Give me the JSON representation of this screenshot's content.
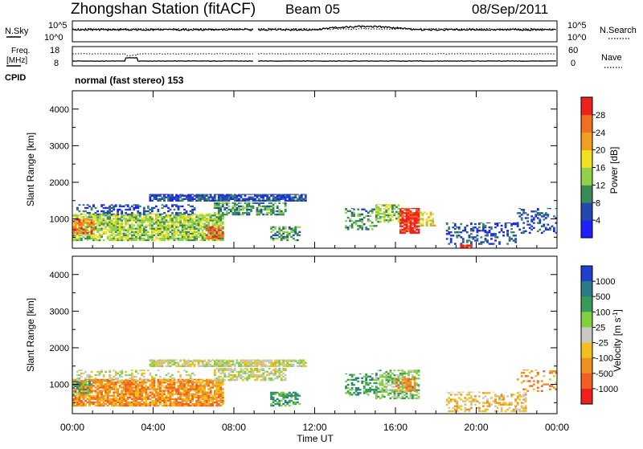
{
  "header": {
    "title": "Zhongshan Station (fitACF)",
    "beam": "Beam 05",
    "date": "08/Sep/2011"
  },
  "top_panels": {
    "nsky_label": "N.Sky",
    "nsky_top_tick": "10^5",
    "nsky_bottom_tick": "10^0",
    "nsearch_label": "N.Search",
    "nsearch_top_tick": "10^5",
    "nsearch_bottom_tick": "10^0",
    "freq_label_1": "Freq.",
    "freq_label_2": "[MHz]",
    "freq_top_tick": "18",
    "freq_bottom_tick": "8",
    "nave_label": "Nave",
    "nave_top_tick": "60",
    "nave_bottom_tick": "0",
    "cpid_label": "CPID",
    "cpid_text": "normal (fast stereo) 153"
  },
  "x_axis": {
    "label": "Time UT",
    "ticks": [
      "00:00",
      "04:00",
      "08:00",
      "12:00",
      "16:00",
      "20:00",
      "00:00"
    ]
  },
  "chart_data": [
    {
      "type": "heatmap",
      "panel": "power",
      "ylabel": "Slant Range [km]",
      "yticks": [
        "1000",
        "2000",
        "3000",
        "4000"
      ],
      "ylim": [
        200,
        4500
      ],
      "xlim": [
        0,
        24
      ],
      "x_unit": "hours UT",
      "colorbar": {
        "label": "Power [dB]",
        "ticks": [
          "4",
          "8",
          "12",
          "16",
          "20",
          "24",
          "28"
        ],
        "range": [
          0,
          32
        ],
        "colors": [
          "#1f1fff",
          "#2448b0",
          "#3a8a5a",
          "#8fd24a",
          "#f0e020",
          "#f0a020",
          "#f07020",
          "#f02020"
        ]
      },
      "regions": [
        {
          "t0": 0.0,
          "t1": 7.4,
          "r0": 400,
          "r1": 1150,
          "level": 3,
          "density": 0.75
        },
        {
          "t0": 0.0,
          "t1": 1.0,
          "r0": 600,
          "r1": 1000,
          "level": 6,
          "density": 0.6
        },
        {
          "t0": 6.6,
          "t1": 7.4,
          "r0": 450,
          "r1": 800,
          "level": 6,
          "density": 0.6
        },
        {
          "t0": 0.2,
          "t1": 6.0,
          "r0": 1100,
          "r1": 1400,
          "level": 1,
          "density": 0.35
        },
        {
          "t0": 3.8,
          "t1": 11.5,
          "r0": 1480,
          "r1": 1680,
          "level": 1,
          "density": 0.8
        },
        {
          "t0": 7.0,
          "t1": 10.5,
          "r0": 1100,
          "r1": 1450,
          "level": 2,
          "density": 0.6
        },
        {
          "t0": 9.8,
          "t1": 11.2,
          "r0": 400,
          "r1": 800,
          "level": 2,
          "density": 0.55
        },
        {
          "t0": 13.5,
          "t1": 15.0,
          "r0": 700,
          "r1": 1300,
          "level": 2,
          "density": 0.4
        },
        {
          "t0": 15.0,
          "t1": 16.2,
          "r0": 900,
          "r1": 1400,
          "level": 3,
          "density": 0.55
        },
        {
          "t0": 16.2,
          "t1": 17.2,
          "r0": 600,
          "r1": 1300,
          "level": 7,
          "density": 0.85
        },
        {
          "t0": 17.2,
          "t1": 18.0,
          "r0": 800,
          "r1": 1200,
          "level": 4,
          "density": 0.5
        },
        {
          "t0": 18.5,
          "t1": 22.0,
          "r0": 300,
          "r1": 900,
          "level": 1,
          "density": 0.3
        },
        {
          "t0": 19.2,
          "t1": 19.8,
          "r0": 200,
          "r1": 300,
          "level": 7,
          "density": 0.9
        },
        {
          "t0": 22.0,
          "t1": 24.0,
          "r0": 600,
          "r1": 1300,
          "level": 1,
          "density": 0.25
        }
      ]
    },
    {
      "type": "heatmap",
      "panel": "velocity",
      "ylabel": "Slant Range [km]",
      "yticks": [
        "1000",
        "2000",
        "3000",
        "4000"
      ],
      "ylim": [
        200,
        4500
      ],
      "xlim": [
        0,
        24
      ],
      "x_unit": "hours UT",
      "colorbar": {
        "label": "Velocity [m s^-1]",
        "ticks": [
          "1000",
          "500",
          "100",
          "25",
          "-25",
          "-100",
          "-500",
          "-1000"
        ],
        "colors": [
          "#2040d0",
          "#2a7a8a",
          "#3a9a5a",
          "#80d040",
          "#c8c8c0",
          "#f0c020",
          "#f09020",
          "#f06020",
          "#f02020"
        ]
      },
      "regions": [
        {
          "t0": 0.0,
          "t1": 7.4,
          "r0": 400,
          "r1": 1150,
          "level": 6,
          "density": 0.8
        },
        {
          "t0": 0.0,
          "t1": 0.8,
          "r0": 700,
          "r1": 1100,
          "level": 2,
          "density": 0.5
        },
        {
          "t0": 0.2,
          "t1": 6.0,
          "r0": 1100,
          "r1": 1400,
          "level": 4,
          "density": 0.3
        },
        {
          "t0": 3.8,
          "t1": 11.5,
          "r0": 1480,
          "r1": 1680,
          "level": 4,
          "density": 0.8
        },
        {
          "t0": 7.0,
          "t1": 10.5,
          "r0": 1100,
          "r1": 1450,
          "level": 4,
          "density": 0.6
        },
        {
          "t0": 9.8,
          "t1": 11.2,
          "r0": 400,
          "r1": 800,
          "level": 2,
          "density": 0.55
        },
        {
          "t0": 13.5,
          "t1": 15.0,
          "r0": 700,
          "r1": 1300,
          "level": 2,
          "density": 0.45
        },
        {
          "t0": 15.0,
          "t1": 17.2,
          "r0": 600,
          "r1": 1400,
          "level": 3,
          "density": 0.6
        },
        {
          "t0": 16.0,
          "t1": 17.0,
          "r0": 800,
          "r1": 1200,
          "level": 6,
          "density": 0.4
        },
        {
          "t0": 18.5,
          "t1": 22.5,
          "r0": 250,
          "r1": 800,
          "level": 5,
          "density": 0.35
        },
        {
          "t0": 22.0,
          "t1": 24.0,
          "r0": 800,
          "r1": 1400,
          "level": 6,
          "density": 0.2
        }
      ]
    }
  ]
}
